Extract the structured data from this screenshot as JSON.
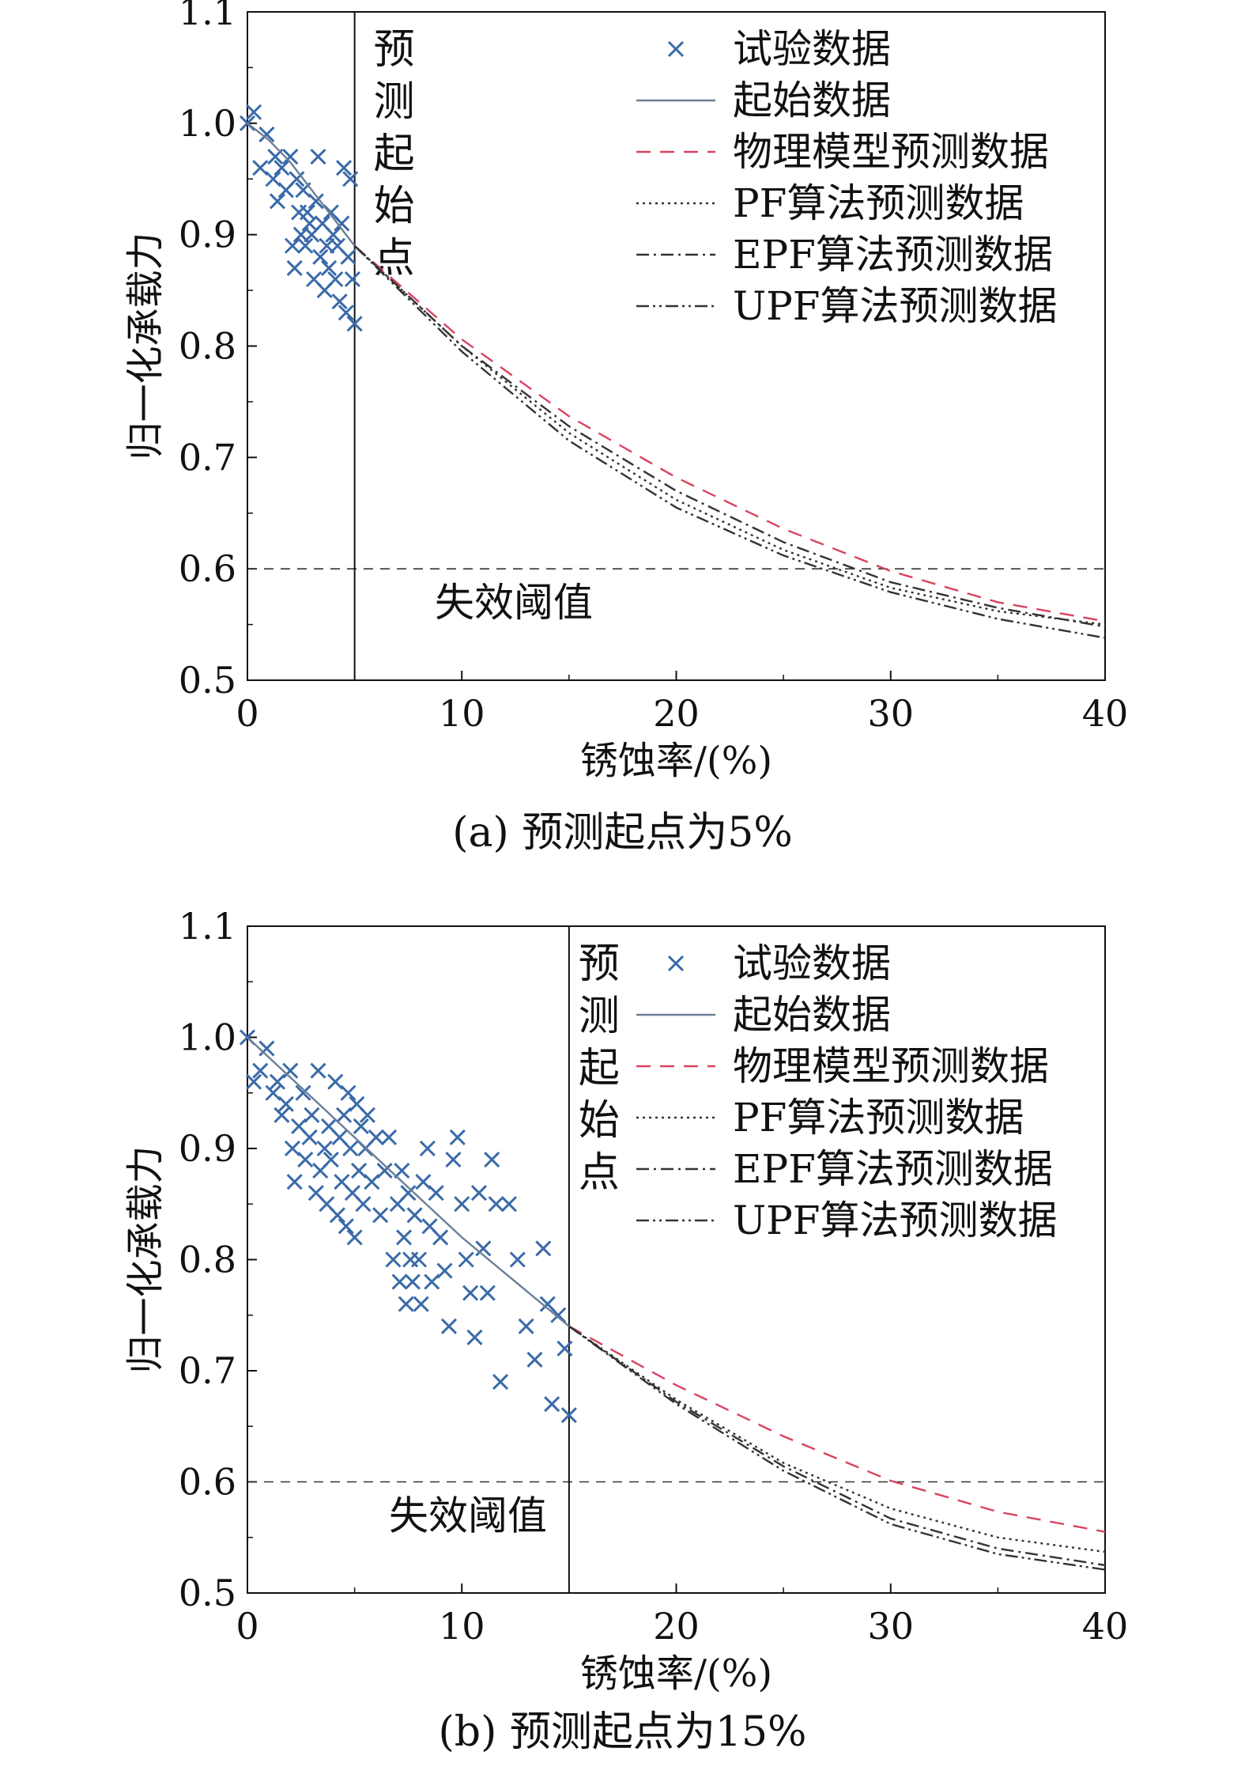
{
  "chart_data": [
    {
      "type": "line",
      "caption": "(a) 预测起点为5%",
      "xlabel": "锈蚀率/(%)",
      "ylabel": "归一化承载力",
      "xlim": [
        0,
        40
      ],
      "ylim": [
        0.5,
        1.1
      ],
      "xticks": [
        0,
        10,
        20,
        30,
        40
      ],
      "yticks": [
        0.5,
        0.6,
        0.7,
        0.8,
        0.9,
        1.0,
        1.1
      ],
      "xtick_labels": [
        "0",
        "10",
        "20",
        "30",
        "40"
      ],
      "ytick_labels": [
        "0.5",
        "0.6",
        "0.7",
        "0.8",
        "0.9",
        "1.0",
        "1.1"
      ],
      "legend_position": "top-right",
      "threshold": {
        "y": 0.6,
        "label": "失效阈值"
      },
      "start_line": {
        "x": 5,
        "label": "预测起始点"
      },
      "series": [
        {
          "name": "试验数据",
          "type": "scatter",
          "color": "#3a6aa8",
          "points": [
            [
              0,
              1.0
            ],
            [
              0.3,
              1.01
            ],
            [
              0.6,
              0.96
            ],
            [
              0.9,
              0.99
            ],
            [
              1.2,
              0.95
            ],
            [
              1.3,
              0.97
            ],
            [
              1.4,
              0.93
            ],
            [
              1.6,
              0.96
            ],
            [
              1.8,
              0.94
            ],
            [
              2.0,
              0.97
            ],
            [
              2.1,
              0.89
            ],
            [
              2.2,
              0.87
            ],
            [
              2.3,
              0.95
            ],
            [
              2.4,
              0.92
            ],
            [
              2.5,
              0.9
            ],
            [
              2.6,
              0.94
            ],
            [
              2.7,
              0.89
            ],
            [
              2.8,
              0.92
            ],
            [
              2.9,
              0.91
            ],
            [
              3.0,
              0.9
            ],
            [
              3.1,
              0.86
            ],
            [
              3.2,
              0.93
            ],
            [
              3.3,
              0.97
            ],
            [
              3.4,
              0.88
            ],
            [
              3.5,
              0.91
            ],
            [
              3.6,
              0.85
            ],
            [
              3.7,
              0.89
            ],
            [
              3.8,
              0.87
            ],
            [
              3.9,
              0.92
            ],
            [
              4.0,
              0.9
            ],
            [
              4.1,
              0.86
            ],
            [
              4.2,
              0.89
            ],
            [
              4.3,
              0.84
            ],
            [
              4.4,
              0.91
            ],
            [
              4.5,
              0.96
            ],
            [
              4.6,
              0.83
            ],
            [
              4.7,
              0.88
            ],
            [
              4.8,
              0.95
            ],
            [
              4.9,
              0.86
            ],
            [
              5.0,
              0.82
            ]
          ]
        },
        {
          "name": "起始数据",
          "type": "line",
          "color": "#6b7f98",
          "points": [
            [
              0,
              1.0
            ],
            [
              1,
              0.985
            ],
            [
              2,
              0.965
            ],
            [
              3,
              0.94
            ],
            [
              4,
              0.915
            ],
            [
              5,
              0.89
            ]
          ]
        },
        {
          "name": "物理模型预测数据",
          "type": "line",
          "color": "#d9435e",
          "dash": "18 12",
          "points": [
            [
              5,
              0.89
            ],
            [
              10,
              0.806
            ],
            [
              15,
              0.737
            ],
            [
              20,
              0.682
            ],
            [
              25,
              0.636
            ],
            [
              30,
              0.598
            ],
            [
              35,
              0.57
            ],
            [
              40,
              0.553
            ]
          ]
        },
        {
          "name": "PF算法预测数据",
          "type": "line",
          "color": "#333333",
          "dash": "3 5",
          "points": [
            [
              5,
              0.89
            ],
            [
              10,
              0.8
            ],
            [
              15,
              0.722
            ],
            [
              20,
              0.662
            ],
            [
              25,
              0.617
            ],
            [
              30,
              0.583
            ],
            [
              35,
              0.562
            ],
            [
              40,
              0.55
            ]
          ]
        },
        {
          "name": "EPF算法预测数据",
          "type": "line",
          "color": "#333333",
          "dash": "16 6 3 6",
          "points": [
            [
              5,
              0.89
            ],
            [
              10,
              0.8
            ],
            [
              15,
              0.728
            ],
            [
              20,
              0.67
            ],
            [
              25,
              0.624
            ],
            [
              30,
              0.588
            ],
            [
              35,
              0.565
            ],
            [
              40,
              0.548
            ]
          ]
        },
        {
          "name": "UPF算法预测数据",
          "type": "line",
          "color": "#333333",
          "dash": "16 5 3 5 3 5",
          "points": [
            [
              5,
              0.89
            ],
            [
              10,
              0.795
            ],
            [
              15,
              0.715
            ],
            [
              20,
              0.655
            ],
            [
              25,
              0.612
            ],
            [
              30,
              0.579
            ],
            [
              35,
              0.555
            ],
            [
              40,
              0.538
            ]
          ]
        }
      ]
    },
    {
      "type": "line",
      "caption": "(b) 预测起点为15%",
      "xlabel": "锈蚀率/(%)",
      "ylabel": "归一化承载力",
      "xlim": [
        0,
        40
      ],
      "ylim": [
        0.5,
        1.1
      ],
      "xticks": [
        0,
        10,
        20,
        30,
        40
      ],
      "yticks": [
        0.5,
        0.6,
        0.7,
        0.8,
        0.9,
        1.0,
        1.1
      ],
      "xtick_labels": [
        "0",
        "10",
        "20",
        "30",
        "40"
      ],
      "ytick_labels": [
        "0.5",
        "0.6",
        "0.7",
        "0.8",
        "0.9",
        "1.0",
        "1.1"
      ],
      "legend_position": "top-right",
      "threshold": {
        "y": 0.6,
        "label": "失效阈值"
      },
      "start_line": {
        "x": 15,
        "label": "预测起始点"
      },
      "series": [
        {
          "name": "试验数据",
          "type": "scatter",
          "color": "#3a6aa8",
          "points": [
            [
              0,
              1.0
            ],
            [
              0.3,
              0.96
            ],
            [
              0.6,
              0.97
            ],
            [
              0.9,
              0.99
            ],
            [
              1.2,
              0.95
            ],
            [
              1.4,
              0.96
            ],
            [
              1.6,
              0.93
            ],
            [
              1.8,
              0.94
            ],
            [
              2.0,
              0.97
            ],
            [
              2.1,
              0.9
            ],
            [
              2.2,
              0.87
            ],
            [
              2.4,
              0.92
            ],
            [
              2.6,
              0.95
            ],
            [
              2.7,
              0.89
            ],
            [
              2.9,
              0.91
            ],
            [
              3.0,
              0.93
            ],
            [
              3.2,
              0.86
            ],
            [
              3.3,
              0.97
            ],
            [
              3.4,
              0.88
            ],
            [
              3.6,
              0.9
            ],
            [
              3.7,
              0.85
            ],
            [
              3.8,
              0.92
            ],
            [
              3.9,
              0.89
            ],
            [
              4.1,
              0.96
            ],
            [
              4.2,
              0.84
            ],
            [
              4.3,
              0.91
            ],
            [
              4.4,
              0.87
            ],
            [
              4.5,
              0.93
            ],
            [
              4.6,
              0.83
            ],
            [
              4.7,
              0.95
            ],
            [
              4.8,
              0.9
            ],
            [
              4.9,
              0.86
            ],
            [
              5.0,
              0.82
            ],
            [
              5.1,
              0.94
            ],
            [
              5.2,
              0.88
            ],
            [
              5.3,
              0.92
            ],
            [
              5.4,
              0.85
            ],
            [
              5.5,
              0.9
            ],
            [
              5.6,
              0.93
            ],
            [
              5.8,
              0.87
            ],
            [
              6.0,
              0.91
            ],
            [
              6.2,
              0.84
            ],
            [
              6.4,
              0.88
            ],
            [
              6.6,
              0.91
            ],
            [
              6.8,
              0.8
            ],
            [
              7.0,
              0.85
            ],
            [
              7.1,
              0.78
            ],
            [
              7.2,
              0.88
            ],
            [
              7.3,
              0.82
            ],
            [
              7.4,
              0.76
            ],
            [
              7.5,
              0.86
            ],
            [
              7.6,
              0.8
            ],
            [
              7.7,
              0.78
            ],
            [
              7.8,
              0.84
            ],
            [
              8.0,
              0.8
            ],
            [
              8.1,
              0.76
            ],
            [
              8.2,
              0.87
            ],
            [
              8.4,
              0.9
            ],
            [
              8.5,
              0.83
            ],
            [
              8.6,
              0.78
            ],
            [
              8.8,
              0.86
            ],
            [
              9.0,
              0.82
            ],
            [
              9.2,
              0.79
            ],
            [
              9.4,
              0.74
            ],
            [
              9.6,
              0.89
            ],
            [
              9.8,
              0.91
            ],
            [
              10.0,
              0.85
            ],
            [
              10.2,
              0.8
            ],
            [
              10.4,
              0.77
            ],
            [
              10.6,
              0.73
            ],
            [
              10.8,
              0.86
            ],
            [
              11.0,
              0.81
            ],
            [
              11.2,
              0.77
            ],
            [
              11.4,
              0.89
            ],
            [
              11.6,
              0.85
            ],
            [
              11.8,
              0.69
            ],
            [
              12.2,
              0.85
            ],
            [
              12.6,
              0.8
            ],
            [
              13.0,
              0.74
            ],
            [
              13.4,
              0.71
            ],
            [
              13.8,
              0.81
            ],
            [
              14.0,
              0.76
            ],
            [
              14.2,
              0.67
            ],
            [
              14.5,
              0.75
            ],
            [
              14.8,
              0.72
            ],
            [
              15.0,
              0.66
            ]
          ]
        },
        {
          "name": "起始数据",
          "type": "line",
          "color": "#6b7f98",
          "points": [
            [
              0,
              1.0
            ],
            [
              2.5,
              0.955
            ],
            [
              5,
              0.91
            ],
            [
              7.5,
              0.865
            ],
            [
              10,
              0.82
            ],
            [
              12.5,
              0.78
            ],
            [
              15,
              0.74
            ]
          ]
        },
        {
          "name": "物理模型预测数据",
          "type": "line",
          "color": "#d9435e",
          "dash": "18 12",
          "points": [
            [
              15,
              0.74
            ],
            [
              20,
              0.687
            ],
            [
              25,
              0.641
            ],
            [
              30,
              0.601
            ],
            [
              35,
              0.573
            ],
            [
              40,
              0.555
            ]
          ]
        },
        {
          "name": "PF算法预测数据",
          "type": "line",
          "color": "#333333",
          "dash": "3 5",
          "points": [
            [
              15,
              0.74
            ],
            [
              20,
              0.674
            ],
            [
              25,
              0.617
            ],
            [
              30,
              0.576
            ],
            [
              35,
              0.55
            ],
            [
              40,
              0.537
            ]
          ]
        },
        {
          "name": "EPF算法预测数据",
          "type": "line",
          "color": "#333333",
          "dash": "16 6 3 6",
          "points": [
            [
              15,
              0.74
            ],
            [
              20,
              0.672
            ],
            [
              25,
              0.614
            ],
            [
              30,
              0.567
            ],
            [
              35,
              0.54
            ],
            [
              40,
              0.525
            ]
          ]
        },
        {
          "name": "UPF算法预测数据",
          "type": "line",
          "color": "#333333",
          "dash": "16 5 3 5 3 5",
          "points": [
            [
              15,
              0.74
            ],
            [
              20,
              0.67
            ],
            [
              25,
              0.61
            ],
            [
              30,
              0.562
            ],
            [
              35,
              0.535
            ],
            [
              40,
              0.521
            ]
          ]
        }
      ]
    }
  ]
}
